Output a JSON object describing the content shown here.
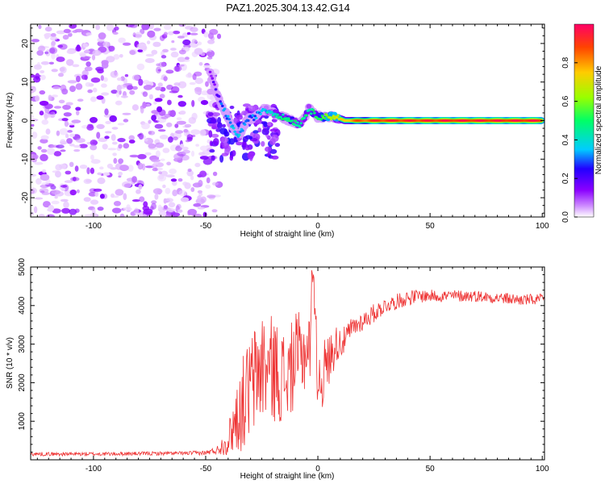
{
  "chart_data": [
    {
      "type": "heatmap",
      "title": "PAZ1.2025.304.13.42.G14",
      "xlabel": "Height of straight line (km)",
      "ylabel": "Frequency (Hz)",
      "xlim": [
        -128,
        101
      ],
      "ylim": [
        -25,
        25
      ],
      "xticks": [
        -100,
        -50,
        0,
        50,
        100
      ],
      "xtick_labels": [
        "-100",
        "-50",
        "0",
        "50",
        "100"
      ],
      "yticks": [
        -20,
        -10,
        0,
        10,
        20
      ],
      "ytick_labels": [
        "-20",
        "-10",
        "0",
        "10",
        "20"
      ],
      "colorbar": {
        "label": "Normalized spectral amplitude",
        "range": [
          0,
          1
        ],
        "ticks": [
          0.0,
          0.2,
          0.4,
          0.6,
          0.8
        ],
        "tick_labels": [
          "0.0",
          "0.2",
          "0.4",
          "0.6",
          "0.8"
        ],
        "colormap": [
          "#ffffff",
          "#8a00ff",
          "#2200ff",
          "#00ccff",
          "#00ff66",
          "#99ff00",
          "#ffcc00",
          "#ff4400",
          "#ff0066"
        ]
      },
      "ridge": {
        "description_points_height_km": [
          -48,
          -45,
          -42,
          -38,
          -35,
          -32,
          -28,
          -24,
          -20,
          -16,
          -12,
          -8,
          -4,
          0,
          4,
          8,
          12,
          20,
          30,
          40,
          50,
          60,
          70,
          80,
          90,
          100
        ],
        "frequency_hz": [
          12,
          7,
          3,
          -2,
          -4,
          0,
          1,
          3,
          2,
          1,
          0,
          -1,
          3,
          1,
          1,
          1,
          0,
          0,
          0,
          0,
          0,
          0,
          0,
          0,
          0,
          0
        ],
        "amplitude": [
          0.15,
          0.2,
          0.3,
          0.35,
          0.35,
          0.3,
          0.3,
          0.35,
          0.4,
          0.45,
          0.5,
          0.45,
          0.45,
          0.5,
          0.6,
          0.65,
          0.75,
          0.85,
          0.9,
          0.9,
          0.9,
          0.92,
          0.92,
          0.92,
          0.92,
          0.92
        ]
      },
      "noise_region_km": [
        -128,
        -48
      ]
    },
    {
      "type": "line",
      "xlabel": "Height of straight line (km)",
      "ylabel": "SNR (10 * v/v)",
      "xlim": [
        -128,
        101
      ],
      "ylim": [
        0,
        5000
      ],
      "xticks": [
        -100,
        -50,
        0,
        50,
        100
      ],
      "xtick_labels": [
        "-100",
        "-50",
        "0",
        "50",
        "100"
      ],
      "yticks": [
        1000,
        2000,
        3000,
        4000,
        5000
      ],
      "ytick_labels": [
        "1000",
        "2000",
        "3000",
        "4000",
        "5000"
      ],
      "color": "#ee3333",
      "series": [
        {
          "name": "SNR",
          "x": [
            -128,
            -100,
            -60,
            -50,
            -45,
            -40,
            -37,
            -34,
            -30,
            -27,
            -25,
            -22,
            -20,
            -17,
            -14,
            -10,
            -6,
            -3,
            -2,
            0,
            2,
            5,
            8,
            12,
            15,
            20,
            25,
            30,
            35,
            40,
            45,
            50,
            60,
            70,
            80,
            90,
            101
          ],
          "values": [
            150,
            150,
            170,
            180,
            250,
            500,
            1000,
            1400,
            1900,
            2200,
            2500,
            2300,
            2400,
            2200,
            2100,
            2600,
            2800,
            3000,
            4800,
            2000,
            2200,
            2600,
            3000,
            3100,
            3400,
            3600,
            3800,
            4000,
            4100,
            4200,
            4250,
            4250,
            4250,
            4250,
            4200,
            4150,
            4150
          ],
          "amplitude_spread": [
            50,
            50,
            50,
            60,
            100,
            400,
            800,
            1200,
            1400,
            1500,
            1500,
            1400,
            1400,
            1300,
            1200,
            1200,
            1100,
            1000,
            400,
            900,
            900,
            700,
            500,
            350,
            300,
            250,
            250,
            200,
            200,
            200,
            180,
            160,
            160,
            150,
            150,
            150,
            150
          ]
        }
      ]
    }
  ]
}
